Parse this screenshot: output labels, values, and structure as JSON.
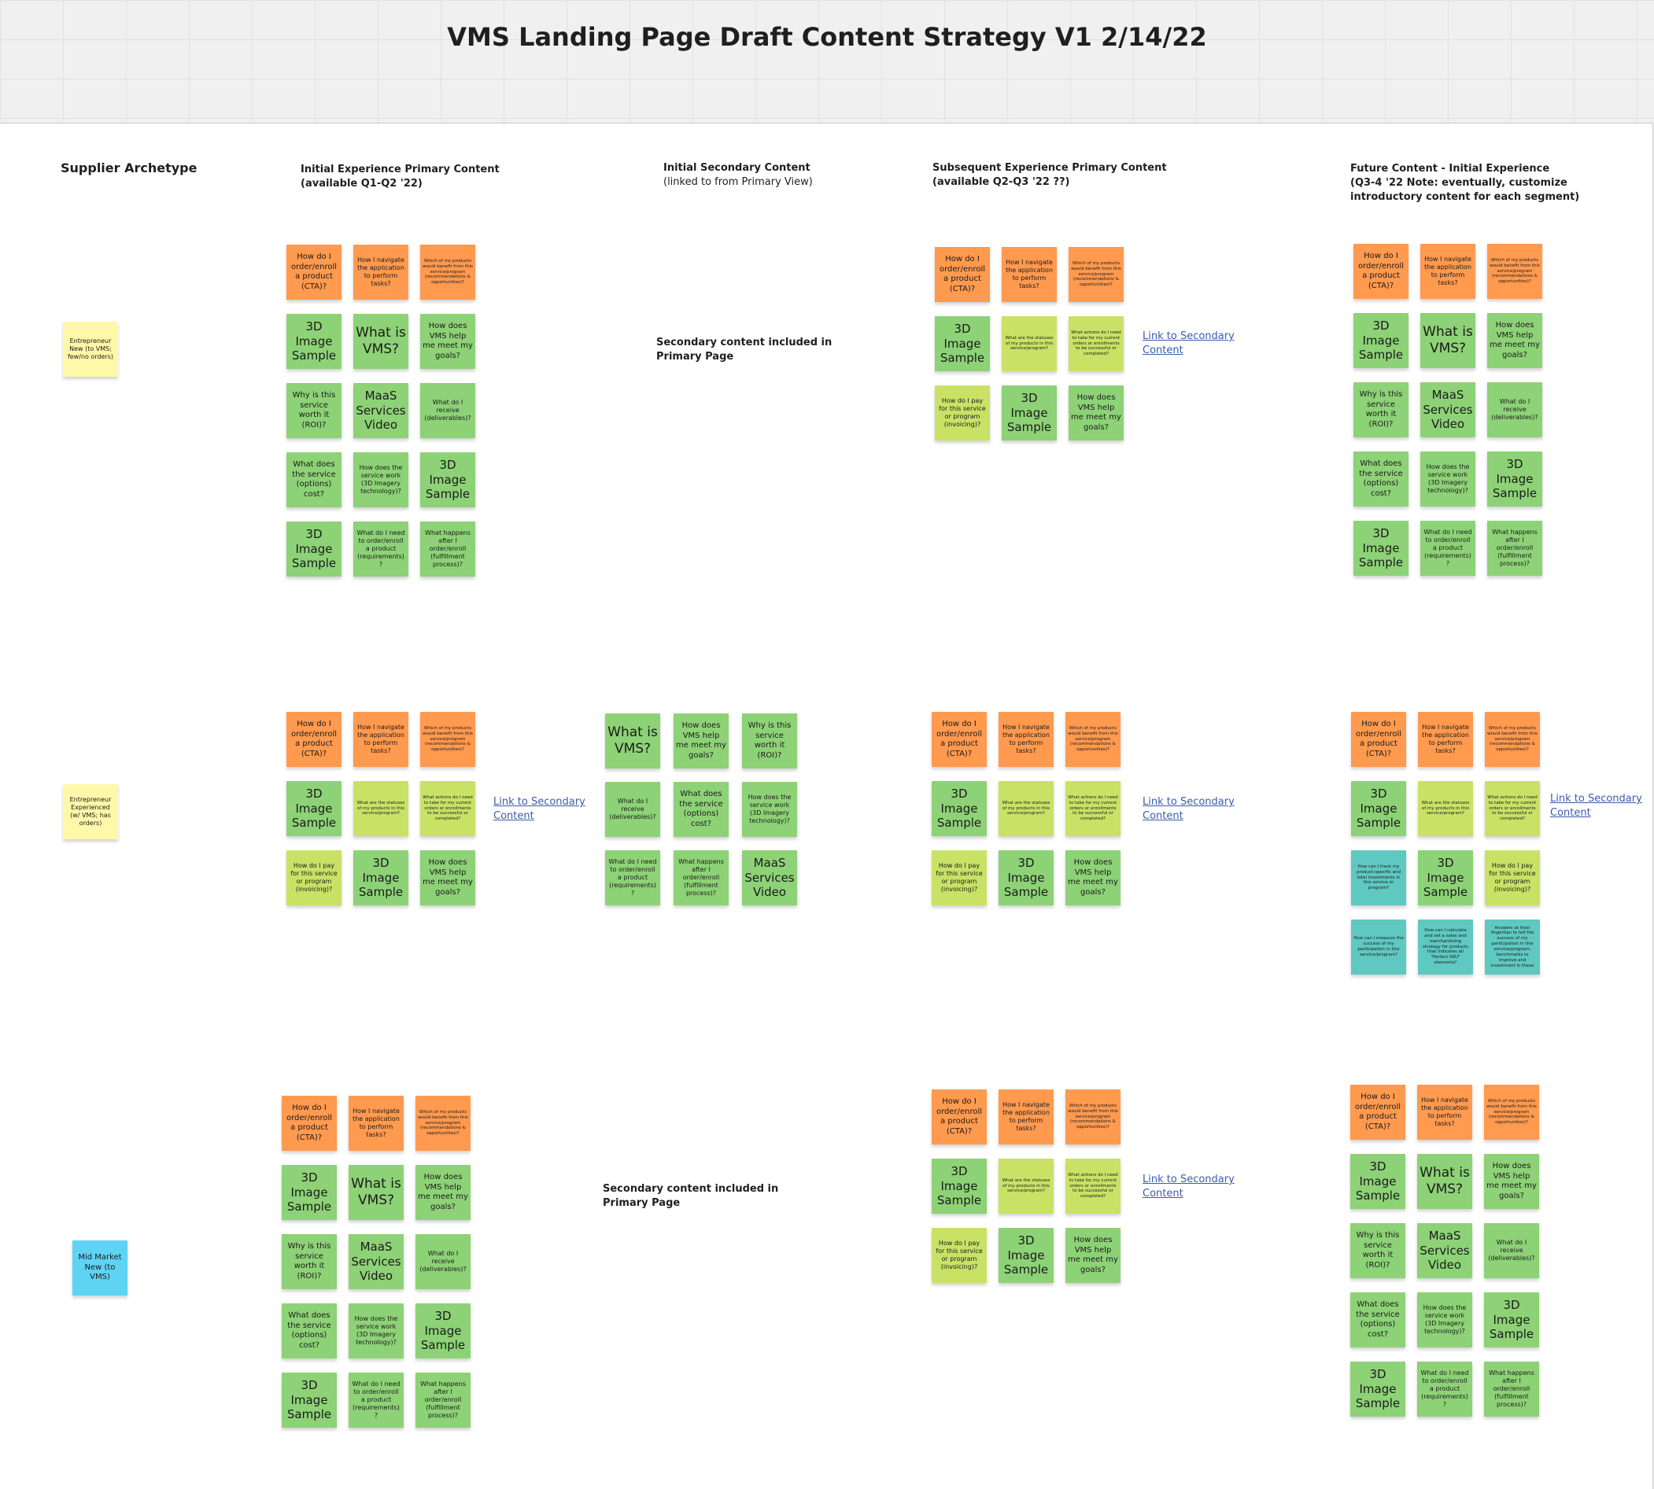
{
  "title": "VMS Landing Page Draft Content Strategy V1 2/14/22",
  "headers": {
    "archetype": "Supplier Archetype",
    "col1": {
      "line1": "Initial Experience Primary Content",
      "line2": "(available Q1-Q2 '22)"
    },
    "col2": {
      "line1": "Initial Secondary Content",
      "line2": "(linked to from Primary View)"
    },
    "col3": {
      "line1": "Subsequent Experience Primary Content",
      "line2": "(available Q2-Q3 '22 ??)"
    },
    "col4": {
      "line1": "Future Content - Initial Experience",
      "line2": "(Q3-4 '22     Note: eventually, customize",
      "line3": "introductory content for each segment)"
    }
  },
  "archetypes": [
    {
      "text": "Entrepreneur New (to VMS; few/no orders)",
      "color": "#fff8a8"
    },
    {
      "text": "Entrepreneur Experienced (w/ VMS; has orders)",
      "color": "#fff8a8"
    },
    {
      "text": "Mid Market New (to VMS)",
      "color": "#5fd3f3"
    }
  ],
  "secondary_included": {
    "line1": "Secondary content included in",
    "line2": "Primary Page"
  },
  "link_text": {
    "line1": "Link to Secondary",
    "line2": "Content"
  },
  "colors": {
    "orange": "#ff9a4f",
    "green": "#8dd276",
    "lime": "#c9e266",
    "teal": "#5fc8c1",
    "yellow": "#fff8a8",
    "blue": "#5fd3f3",
    "link": "#3b5bab"
  },
  "stickies": {
    "cta": "How do I order/enroll a product (CTA)?",
    "navigate": "How I navigate the application to perform tasks?",
    "recommend": "Which of my products would benefit from this service/program (recommendations & opportunities)?",
    "image": "3D Image Sample",
    "whatis": "What is VMS?",
    "goals": "How does VMS help me meet my goals?",
    "roi": "Why is this service worth it (ROI)?",
    "maas": "MaaS Services Video",
    "receive": "What do I receive (deliverables)?",
    "cost": "What does the service (options) cost?",
    "work": "How does the service work (3D Imagery technology)?",
    "requirements": "What do I need to order/enroll a product (requirements)?",
    "fulfillment": "What happens after I order/enroll (fulfillment process)?",
    "statuses": "What are the statuses of my products in this service/program?",
    "actions": "What actions do I need to take for my current orders or enrollments to be successful or completed?",
    "invoicing": "How do I pay for this service or program (invoicing)?",
    "track": "How can I track my product-specific and total investments in this service or program?",
    "measure": "How can I measure the success of my participation in this service/program?",
    "calculate": "How can I calculate and set a sales and merchandising strategy for products that indicates all \"Perfect SKU\" elements?",
    "answers": "Answers at their fingertips to tell the success of my participation in this service/program; benchmarks to improve and investment in these"
  }
}
